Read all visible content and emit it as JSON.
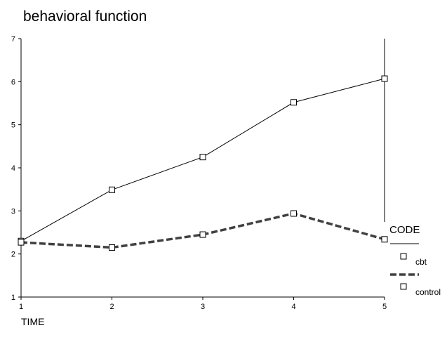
{
  "chart_data": {
    "type": "line",
    "title": "behavioral function",
    "x_label": "TIME",
    "legend_title": "CODE",
    "x": [
      1,
      2,
      3,
      4,
      5
    ],
    "series": [
      {
        "name": "cbt",
        "color": "#000000",
        "values": [
          2.3,
          3.49,
          4.25,
          5.52,
          6.07
        ]
      },
      {
        "name": "control",
        "color": "#404040",
        "values": [
          2.27,
          2.15,
          2.45,
          2.94,
          2.34
        ]
      }
    ],
    "xlim": [
      1,
      5
    ],
    "xticks": [
      1,
      2,
      3,
      4,
      5
    ],
    "ylim": [
      1,
      7
    ],
    "yticks": [
      1,
      2,
      3,
      4,
      5,
      6,
      7
    ]
  }
}
